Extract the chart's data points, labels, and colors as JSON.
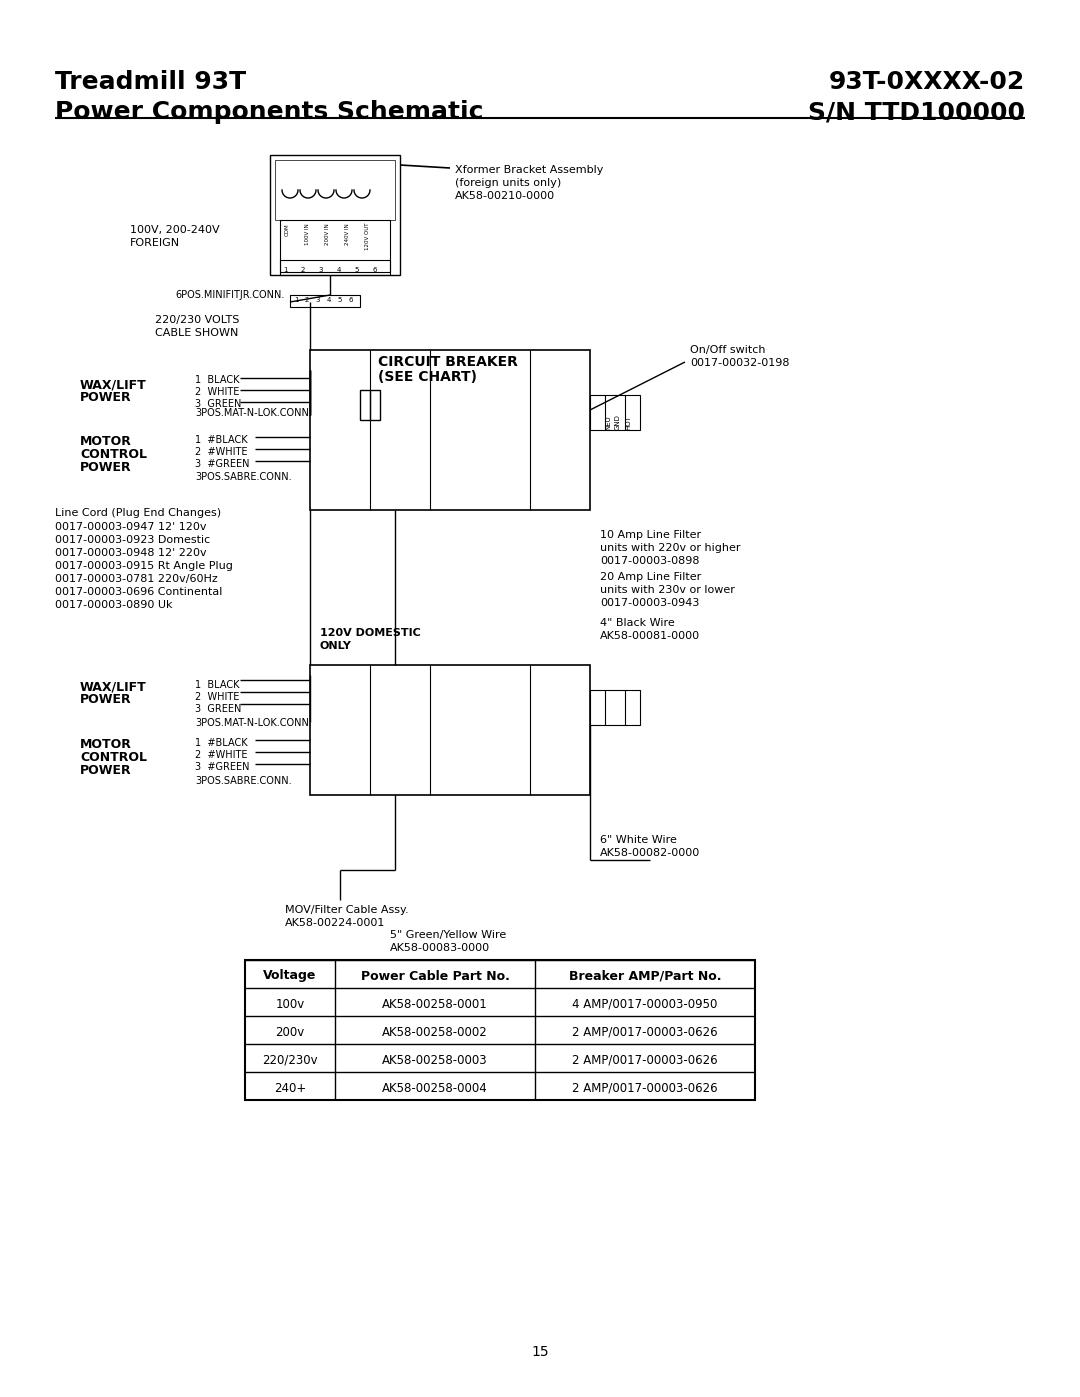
{
  "title_left_line1": "Treadmill 93T",
  "title_right_line1": "93T-0XXXX-02",
  "title_left_line2": "Power Components Schematic",
  "title_right_line2": "S/N TTD100000",
  "page_number": "15",
  "table_headers": [
    "Voltage",
    "Power Cable Part No.",
    "Breaker AMP/Part No."
  ],
  "table_rows": [
    [
      "100v",
      "AK58-00258-0001",
      "4 AMP/0017-00003-0950"
    ],
    [
      "200v",
      "AK58-00258-0002",
      "2 AMP/0017-00003-0626"
    ],
    [
      "220/230v",
      "AK58-00258-0003",
      "2 AMP/0017-00003-0626"
    ],
    [
      "240+",
      "AK58-00258-0004",
      "2 AMP/0017-00003-0626"
    ]
  ],
  "bg_color": "#ffffff",
  "text_color": "#000000",
  "line_color": "#000000"
}
